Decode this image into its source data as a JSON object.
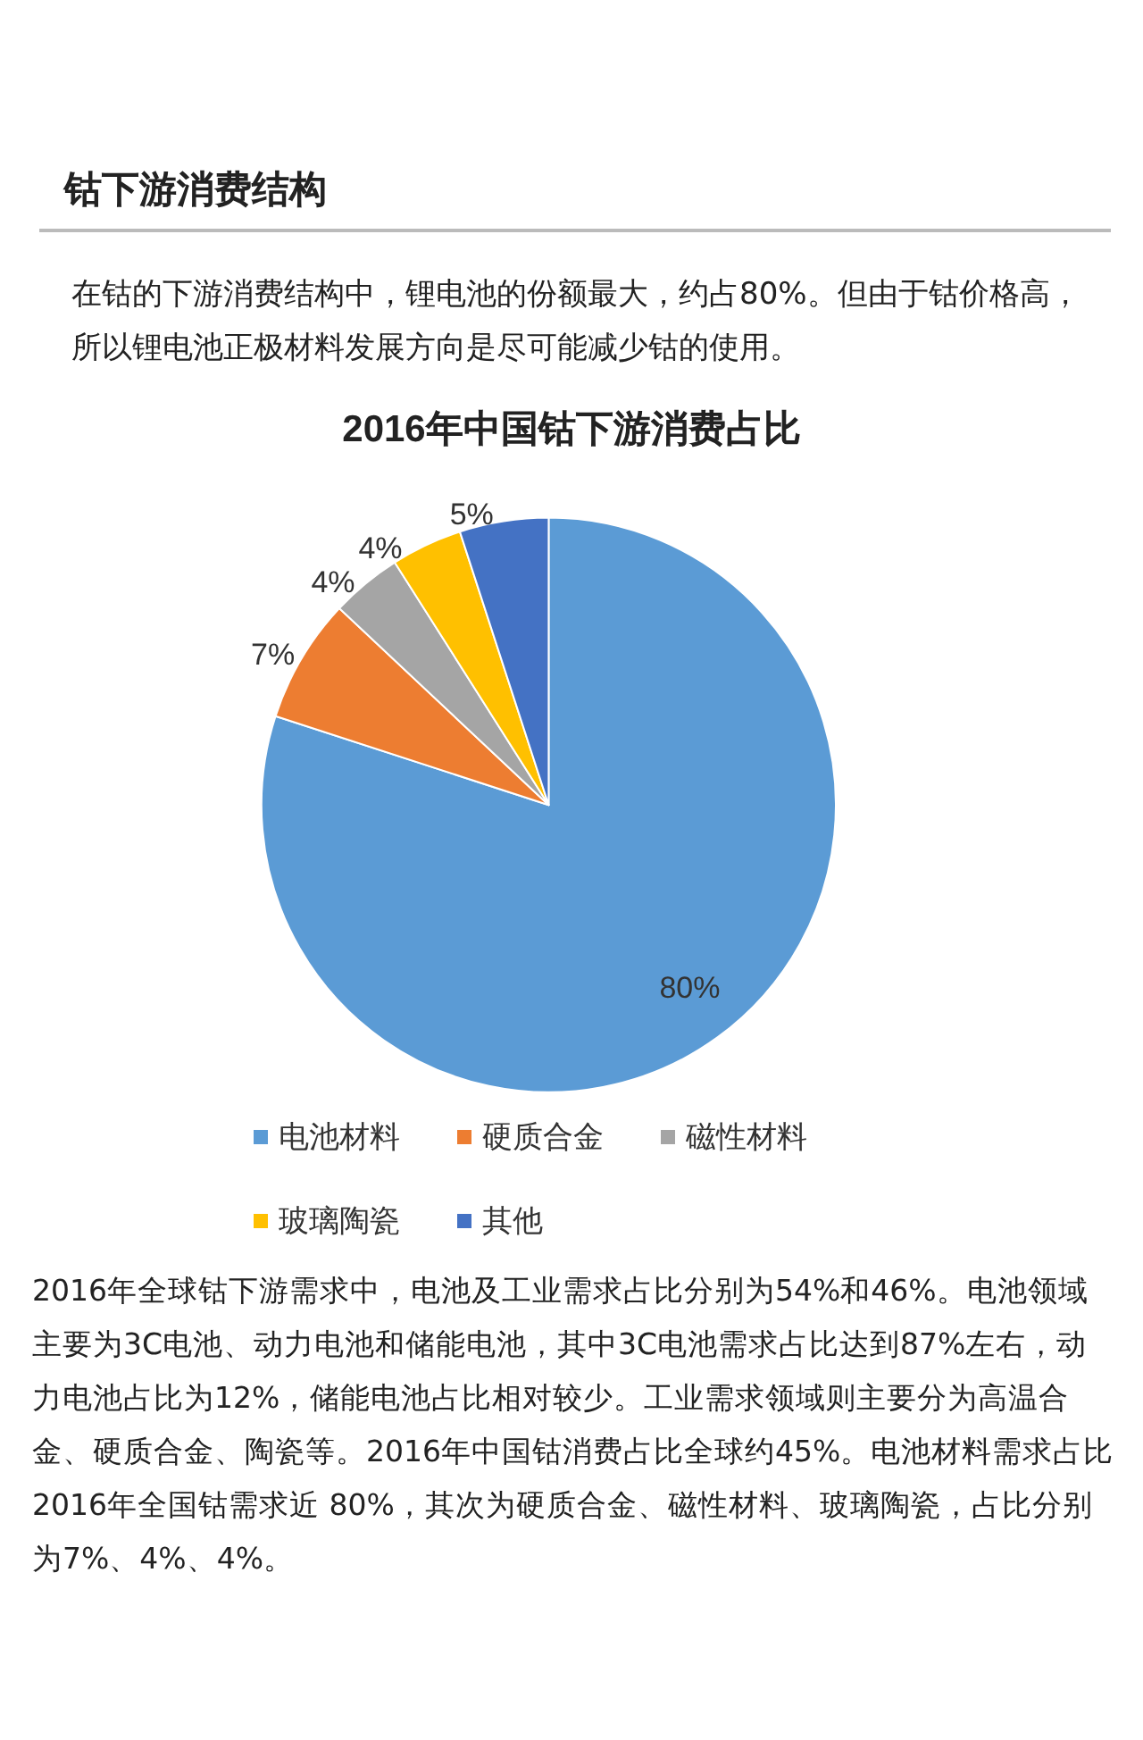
{
  "chart_data": {
    "type": "pie",
    "title": "2016年中国钴下游消费占比",
    "categories": [
      "电池材料",
      "硬质合金",
      "磁性材料",
      "玻璃陶瓷",
      "其他"
    ],
    "values": [
      80,
      7,
      4,
      4,
      5
    ],
    "colors": [
      "#5b9bd5",
      "#ed7d31",
      "#a5a5a5",
      "#ffc000",
      "#4472c4"
    ],
    "value_labels": [
      "80%",
      "7%",
      "4%",
      "4%",
      "5%"
    ],
    "legend": "bottom",
    "annotations": [
      "钴下游消费结构",
      "在钴的下游消费结构中，锂电池的份额最大，约占80%。但由于钴价格高，所以锂电池正极材料发展方向是尽可能减少钴的使用。",
      "2016年全球钴下游需求中，电池及工业需求占比分别为54%和46%。电池领域主要为3C电池、动力电池和储能电池，其中3C电池需求占比达到87%左右，动力电池占比为12%，储能电池占比相对较少。工业需求领域则主要分为高温合金、硬质合金、陶瓷等。2016年中国钴消费占比全球约45%。电池材料需求占比2016年全国钴需求近 80%，其次为硬质合金、磁性材料、玻璃陶瓷，占比分别为7%、4%、4%。"
    ]
  }
}
